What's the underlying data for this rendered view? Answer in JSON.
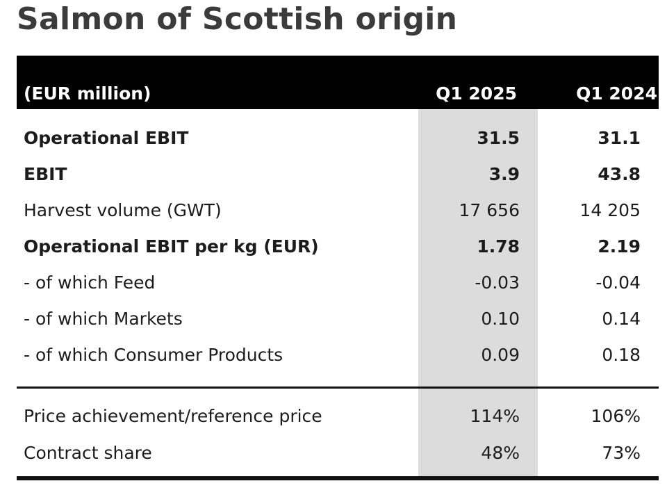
{
  "title": "Salmon of Scottish origin",
  "table": {
    "unit_label": "(EUR million)",
    "columns": [
      "Q1 2025",
      "Q1 2024"
    ],
    "rows": [
      {
        "label": "Operational EBIT",
        "q1_2025": "31.5",
        "q1_2024": "31.1",
        "bold": true
      },
      {
        "label": "EBIT",
        "q1_2025": "3.9",
        "q1_2024": "43.8",
        "bold": true
      },
      {
        "label": "Harvest volume (GWT)",
        "q1_2025": "17 656",
        "q1_2024": "14 205",
        "bold": false
      },
      {
        "label": "Operational EBIT per kg (EUR)",
        "q1_2025": "1.78",
        "q1_2024": "2.19",
        "bold": true
      },
      {
        "label": "- of which Feed",
        "q1_2025": "-0.03",
        "q1_2024": "-0.04",
        "bold": false
      },
      {
        "label": "- of which Markets",
        "q1_2025": "0.10",
        "q1_2024": "0.14",
        "bold": false
      },
      {
        "label": "- of which Consumer Products",
        "q1_2025": "0.09",
        "q1_2024": "0.18",
        "bold": false
      }
    ],
    "rows_secondary": [
      {
        "label": "Price achievement/reference price",
        "q1_2025": "114%",
        "q1_2024": "106%",
        "bold": false
      },
      {
        "label": "Contract share",
        "q1_2025": "48%",
        "q1_2024": "73%",
        "bold": false
      }
    ]
  }
}
